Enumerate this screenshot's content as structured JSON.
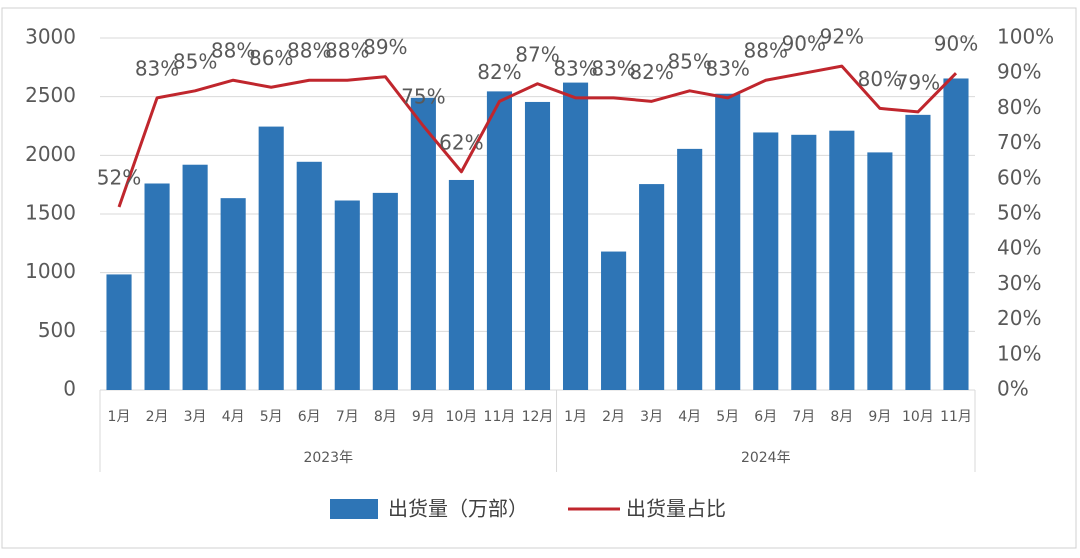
{
  "chart_data": {
    "type": "bar-line",
    "groups": [
      {
        "name": "2023年",
        "categories": [
          "1月",
          "2月",
          "3月",
          "4月",
          "5月",
          "6月",
          "7月",
          "8月",
          "9月",
          "10月",
          "11月",
          "12月"
        ]
      },
      {
        "name": "2024年",
        "categories": [
          "1月",
          "2月",
          "3月",
          "4月",
          "5月",
          "6月",
          "7月",
          "8月",
          "9月",
          "10月",
          "11月"
        ]
      }
    ],
    "series": [
      {
        "name": "出货量（万部）",
        "type": "bar",
        "color": "#2e75b6",
        "values": [
          985,
          1760,
          1920,
          1635,
          2245,
          1945,
          1615,
          1680,
          2490,
          1790,
          2545,
          2455,
          2620,
          1180,
          1755,
          2055,
          2525,
          2195,
          2175,
          2210,
          2025,
          2345,
          2655
        ]
      },
      {
        "name": "出货量占比",
        "type": "line",
        "axis": "y2",
        "color": "#c0262d",
        "values": [
          52,
          83,
          85,
          88,
          86,
          88,
          88,
          89,
          75,
          62,
          82,
          87,
          83,
          83,
          82,
          85,
          83,
          88,
          90,
          92,
          80,
          79,
          90
        ],
        "value_labels": [
          "52%",
          "83%",
          "85%",
          "88%",
          "86%",
          "88%",
          "88%",
          "89%",
          "75%",
          "62%",
          "82%",
          "87%",
          "83%",
          "83%",
          "82%",
          "85%",
          "83%",
          "88%",
          "90%",
          "92%",
          "80%",
          "79%",
          "90%"
        ]
      }
    ],
    "ylim": [
      0,
      3000
    ],
    "yticks": [
      0,
      500,
      1000,
      1500,
      2000,
      2500,
      3000
    ],
    "y2lim": [
      0,
      100
    ],
    "y2ticks": [
      {
        "value": 0,
        "label": "0%"
      },
      {
        "value": 10,
        "label": "10%"
      },
      {
        "value": 20,
        "label": "20%"
      },
      {
        "value": 30,
        "label": "30%"
      },
      {
        "value": 40,
        "label": "40%"
      },
      {
        "value": 50,
        "label": "50%"
      },
      {
        "value": 60,
        "label": "60%"
      },
      {
        "value": 70,
        "label": "70%"
      },
      {
        "value": 80,
        "label": "80%"
      },
      {
        "value": 90,
        "label": "90%"
      },
      {
        "value": 100,
        "label": "100%"
      }
    ],
    "grid": true
  }
}
